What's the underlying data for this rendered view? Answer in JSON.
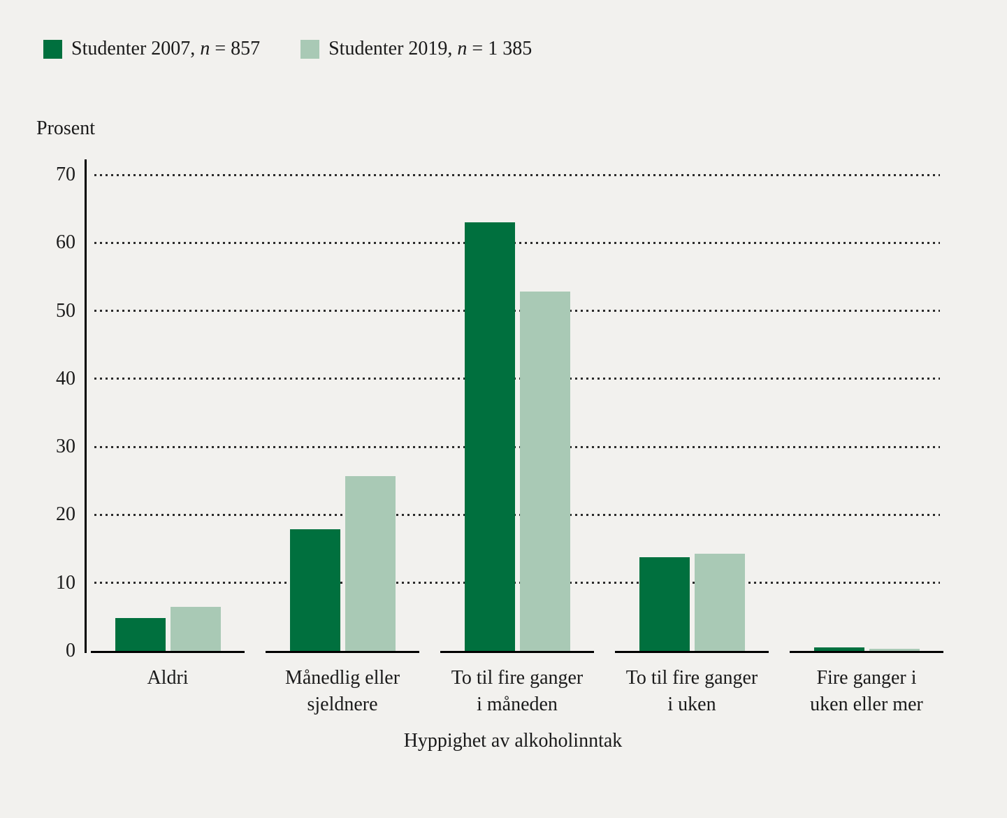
{
  "chart_data": {
    "type": "bar",
    "title": "",
    "ylabel": "Prosent",
    "xlabel": "Hyppighet av alkoholinntak",
    "n_symbol": "n",
    "categories": [
      [
        "Aldri"
      ],
      [
        "Månedlig eller",
        "sjeldnere"
      ],
      [
        "To til fire ganger",
        "i måneden"
      ],
      [
        "To til fire ganger",
        "i uken"
      ],
      [
        "Fire ganger i",
        "uken eller mer"
      ]
    ],
    "series": [
      {
        "name": "Studenter 2007",
        "n": "857",
        "color": "#00703e",
        "values": [
          4.8,
          17.9,
          63.0,
          13.8,
          0.5
        ]
      },
      {
        "name": "Studenter 2019",
        "n": "1 385",
        "color": "#a9c9b5",
        "values": [
          6.5,
          25.7,
          52.8,
          14.3,
          0.3
        ]
      }
    ],
    "yticks": [
      0,
      10,
      20,
      30,
      40,
      50,
      60,
      70
    ],
    "ylim": [
      0,
      70
    ],
    "grid": "dotted-horizontal",
    "legend_position": "top-left",
    "colors": {
      "background": "#f2f1ee",
      "axis": "#000000",
      "grid_dots": "#2b2b2b",
      "text": "#1a1a1a"
    }
  }
}
